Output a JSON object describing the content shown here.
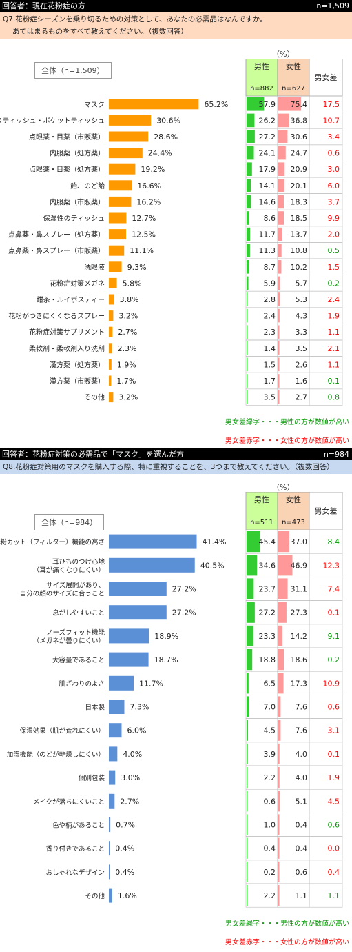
{
  "colors": {
    "q7_bar": "#ff9900",
    "q8_bar": "#5b8fd6",
    "male": "#33cc33",
    "female": "#ff9999",
    "male_header": "#ccff99",
    "female_header": "#fad2b4",
    "diff_green": "#009900",
    "diff_red": "#ff0000",
    "q7_banner": "#ffd9c0",
    "q8_banner": "#c6d9f1"
  },
  "q7": {
    "header_left": "回答者：現在花粉症の方",
    "header_right": "n=1,509",
    "question_line1": "Q7.花粉症シーズンを乗り切るための対策として、あなたの必需品はなんですか。",
    "question_line2": "あてはまるものをすべて教えてください。（複数回答）",
    "all_label": "全体（n=1,509）",
    "unit": "（%）",
    "male_label": "男性",
    "male_n": "n=882",
    "female_label": "女性",
    "female_n": "n=627",
    "diff_label": "男女差",
    "legend_green": "男女差緑字・・・男性の方が数値が高い",
    "legend_red": "男女差赤字・・・女性の方が数値が高い"
  },
  "q8": {
    "header_left": "回答者：花粉症対策の必需品で「マスク」を選んだ方",
    "header_right": "n=984",
    "question_line1": "Q8.花粉症対策用のマスクを購入する際、特に重視することを、3つまで教えてください。（複数回答）",
    "all_label": "全体（n=984）",
    "unit": "（%）",
    "male_label": "男性",
    "male_n": "n=511",
    "female_label": "女性",
    "female_n": "n=473",
    "diff_label": "男女差",
    "legend_green": "男女差緑字・・・男性の方が数値が高い",
    "legend_red": "男女差赤字・・・女性の方が数値が高い"
  },
  "chart_data": [
    {
      "type": "bar",
      "title": "Q7.花粉症シーズンを乗り切るための対策として、あなたの必需品はなんですか。",
      "ylabel": "（%）",
      "categories": [
        "マスク",
        "ボックスティッシュ・ポケットティッシュ",
        "点眼薬・目薬（市販薬）",
        "内服薬（処方薬）",
        "点眼薬・目薬（処方薬）",
        "飴、のど飴",
        "内服薬（市販薬）",
        "保湿性のティッシュ",
        "点鼻薬・鼻スプレー（処方薬）",
        "点鼻薬・鼻スプレー（市販薬）",
        "洗眼液",
        "花粉症対策メガネ",
        "甜茶・ルイボスティー",
        "花粉がつきにくくなるスプレー",
        "花粉症対策サプリメント",
        "柔軟剤・柔軟剤入り洗剤",
        "漢方薬（処方薬）",
        "漢方薬（市販薬）",
        "その他"
      ],
      "series": [
        {
          "name": "全体（n=1,509）",
          "values": [
            65.2,
            30.6,
            28.6,
            24.4,
            19.2,
            16.6,
            16.2,
            12.7,
            12.5,
            11.1,
            9.3,
            5.8,
            3.8,
            3.2,
            2.7,
            2.3,
            1.9,
            1.7,
            3.2
          ]
        },
        {
          "name": "男性",
          "values": [
            57.9,
            26.2,
            27.2,
            24.1,
            17.9,
            14.1,
            14.6,
            8.6,
            11.7,
            11.3,
            8.7,
            5.9,
            2.8,
            2.4,
            2.3,
            1.4,
            1.5,
            1.7,
            3.5
          ]
        },
        {
          "name": "女性",
          "values": [
            75.4,
            36.8,
            30.6,
            24.7,
            20.9,
            20.1,
            18.3,
            18.5,
            13.7,
            10.8,
            10.2,
            5.7,
            5.3,
            4.3,
            3.3,
            3.5,
            2.6,
            1.6,
            2.7
          ]
        },
        {
          "name": "男女差",
          "values": [
            17.5,
            10.7,
            3.4,
            0.6,
            3.0,
            6.0,
            3.7,
            9.9,
            2.0,
            0.5,
            1.5,
            0.2,
            2.4,
            1.9,
            1.1,
            2.1,
            1.1,
            0.1,
            0.8
          ]
        }
      ],
      "diff_color": [
        "r",
        "r",
        "r",
        "r",
        "r",
        "r",
        "r",
        "r",
        "r",
        "g",
        "r",
        "g",
        "r",
        "r",
        "r",
        "r",
        "r",
        "g",
        "g"
      ],
      "xlim": [
        0,
        100
      ]
    },
    {
      "type": "bar",
      "title": "Q8.花粉症対策用のマスクを購入する際、特に重視することを、3つまで教えてください。（複数回答）",
      "ylabel": "（%）",
      "categories": [
        [
          "花粉カット（フィルター）機能の高さ"
        ],
        [
          "耳ひものつけ心地",
          "（耳が痛くなりにくい）"
        ],
        [
          "サイズ展開があり、",
          "自分の顔のサイズに合うこと"
        ],
        [
          "息がしやすいこと"
        ],
        [
          "ノーズフィット機能",
          "（メガネが曇りにくい）"
        ],
        [
          "大容量であること"
        ],
        [
          "肌ざわりのよさ"
        ],
        [
          "日本製"
        ],
        [
          "保湿効果（肌が荒れにくい）"
        ],
        [
          "加湿機能（のどが乾燥しにくい）"
        ],
        [
          "個別包装"
        ],
        [
          "メイクが落ちにくいこと"
        ],
        [
          "色や柄があること"
        ],
        [
          "香り付きであること"
        ],
        [
          "おしゃれなデザイン"
        ],
        [
          "その他"
        ]
      ],
      "series": [
        {
          "name": "全体（n=984）",
          "values": [
            41.4,
            40.5,
            27.2,
            27.2,
            18.9,
            18.7,
            11.7,
            7.3,
            6.0,
            4.0,
            3.0,
            2.7,
            0.7,
            0.4,
            0.4,
            1.6
          ]
        },
        {
          "name": "男性",
          "values": [
            45.4,
            34.6,
            23.7,
            27.2,
            23.3,
            18.8,
            6.5,
            7.0,
            4.5,
            3.9,
            2.2,
            0.6,
            1.0,
            0.4,
            0.2,
            2.2
          ]
        },
        {
          "name": "女性",
          "values": [
            37.0,
            46.9,
            31.1,
            27.3,
            14.2,
            18.6,
            17.3,
            7.6,
            7.6,
            4.0,
            4.0,
            5.1,
            0.4,
            0.4,
            0.6,
            1.1
          ]
        },
        {
          "name": "男女差",
          "values": [
            8.4,
            12.3,
            7.4,
            0.1,
            9.1,
            0.2,
            10.9,
            0.6,
            3.1,
            0.1,
            1.9,
            4.5,
            0.6,
            0.0,
            0.4,
            1.1
          ]
        }
      ],
      "diff_color": [
        "g",
        "r",
        "r",
        "r",
        "g",
        "g",
        "r",
        "r",
        "r",
        "r",
        "r",
        "r",
        "g",
        "r",
        "r",
        "g"
      ],
      "xlim": [
        0,
        100
      ]
    }
  ]
}
